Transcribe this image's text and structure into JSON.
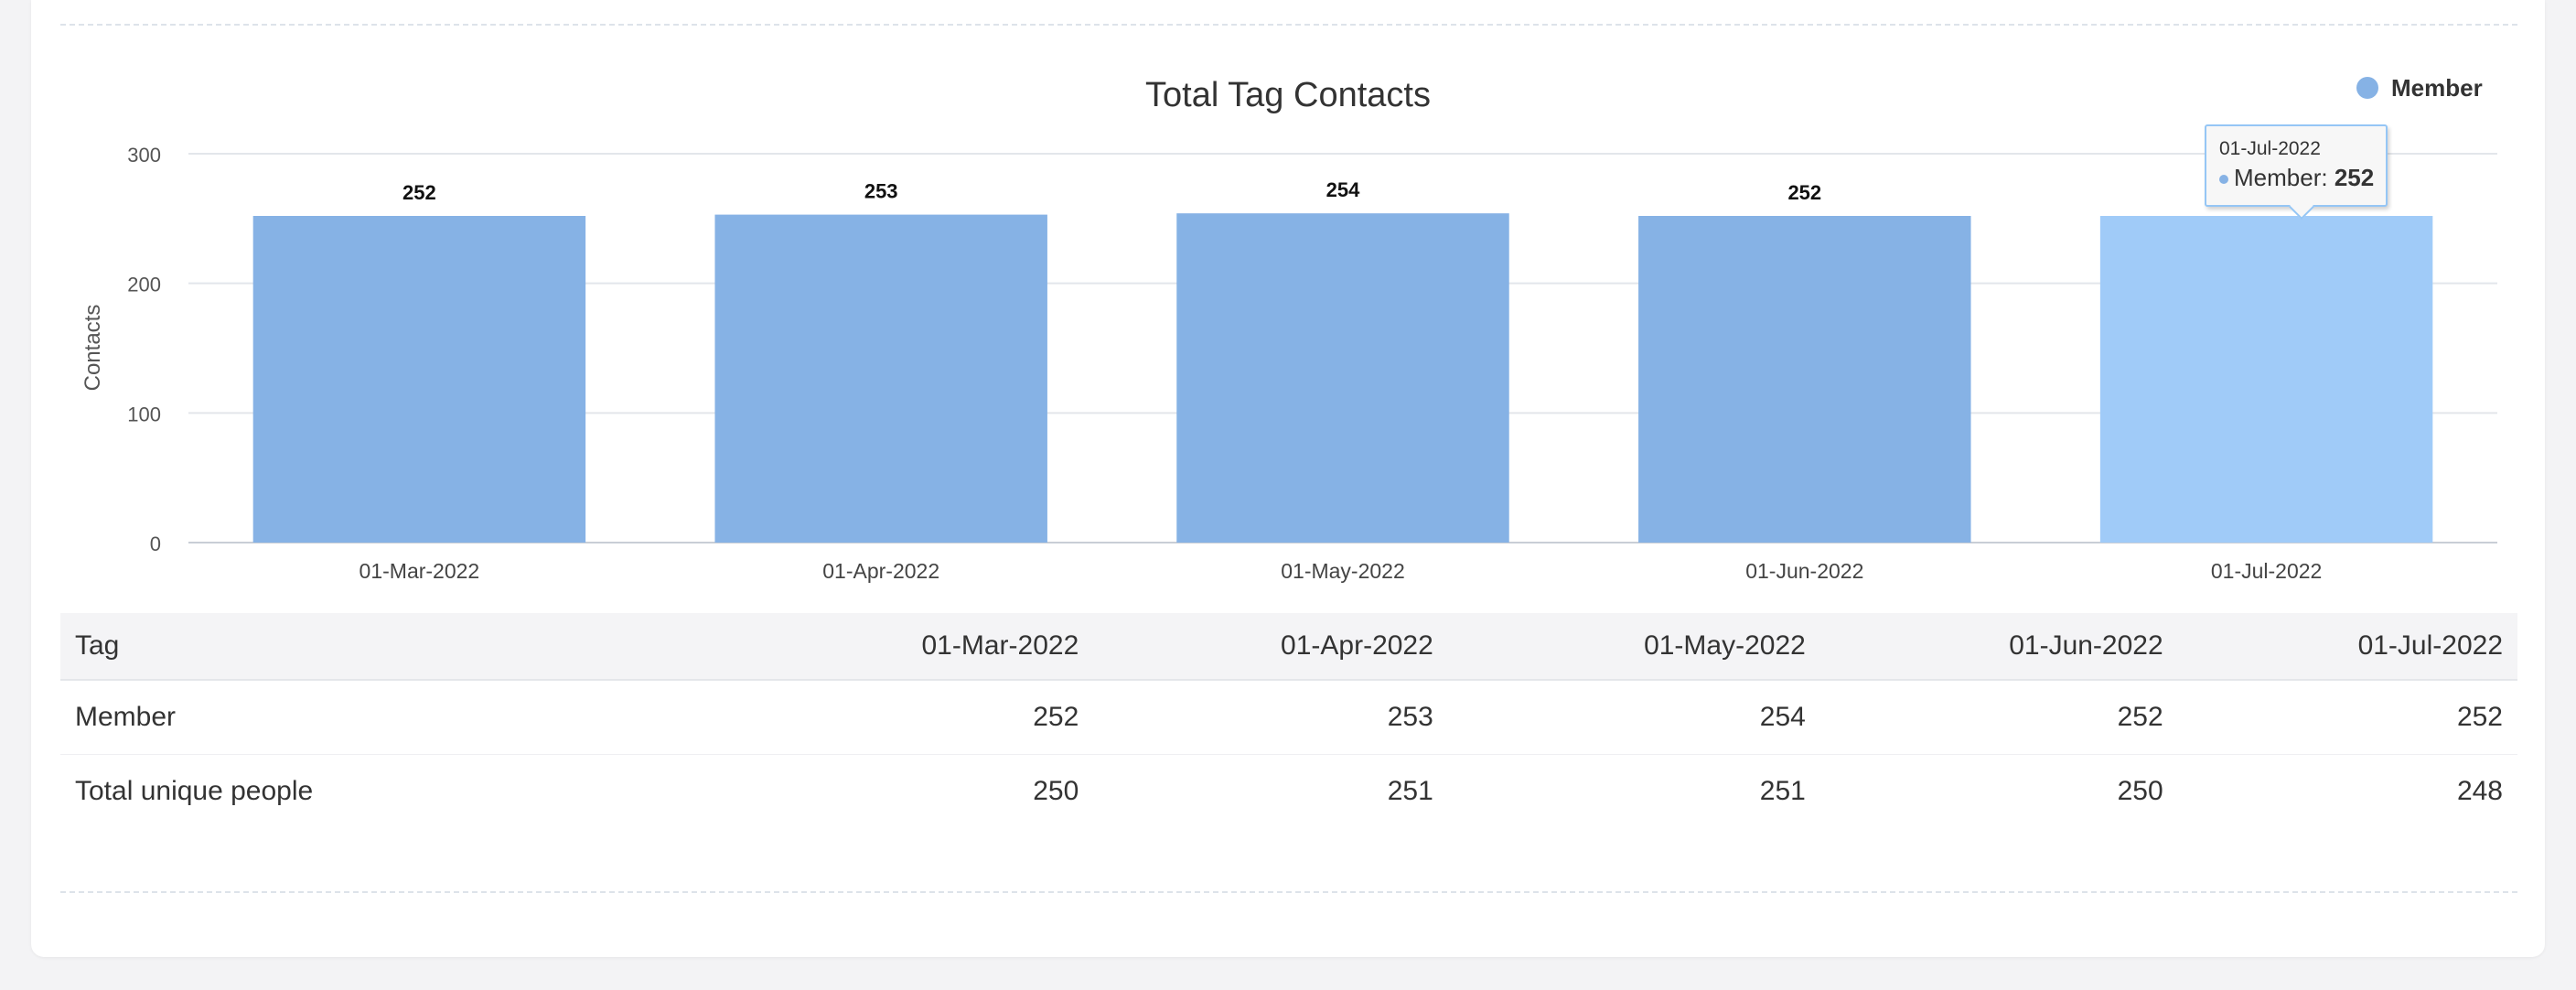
{
  "chart_data": {
    "type": "bar",
    "title": "Total Tag Contacts",
    "ylabel": "Contacts",
    "xlabel": "",
    "categories": [
      "01-Mar-2022",
      "01-Apr-2022",
      "01-May-2022",
      "01-Jun-2022",
      "01-Jul-2022"
    ],
    "series": [
      {
        "name": "Member",
        "values": [
          252,
          253,
          254,
          252,
          252
        ]
      }
    ],
    "ylim": [
      0,
      300
    ],
    "yticks": [
      0,
      100,
      200,
      300
    ],
    "grid": true,
    "legend": "top-right",
    "bar_color": "#86b2e5",
    "highlight_color": "#a0cbf8",
    "highlight_index": 4
  },
  "tooltip": {
    "date": "01-Jul-2022",
    "series": "Member",
    "value": "252"
  },
  "table": {
    "headers": [
      "Tag",
      "01-Mar-2022",
      "01-Apr-2022",
      "01-May-2022",
      "01-Jun-2022",
      "01-Jul-2022"
    ],
    "rows": [
      [
        "Member",
        "252",
        "253",
        "254",
        "252",
        "252"
      ],
      [
        "Total unique people",
        "250",
        "251",
        "251",
        "250",
        "248"
      ]
    ]
  }
}
